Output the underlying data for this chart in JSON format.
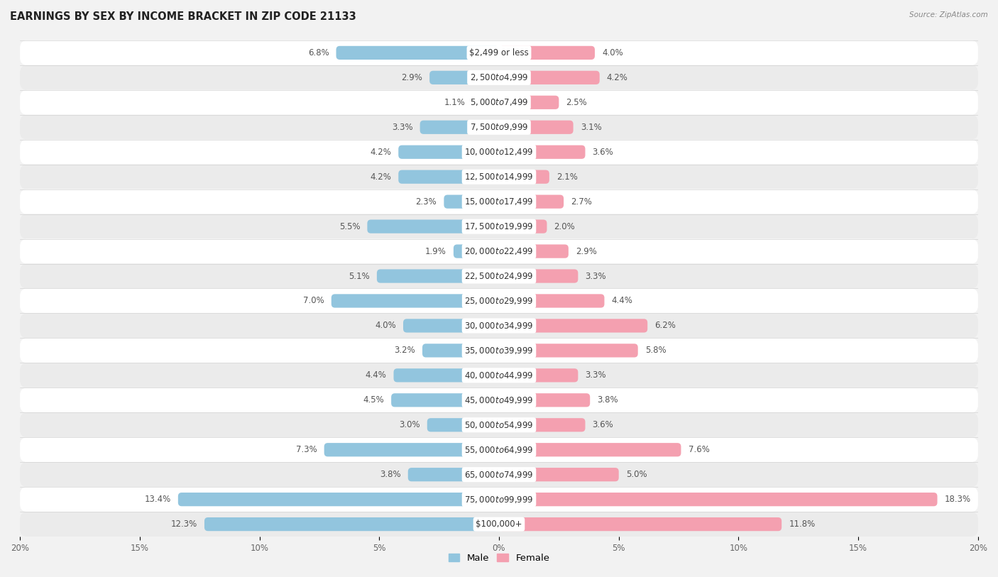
{
  "title": "EARNINGS BY SEX BY INCOME BRACKET IN ZIP CODE 21133",
  "source": "Source: ZipAtlas.com",
  "categories": [
    "$2,499 or less",
    "$2,500 to $4,999",
    "$5,000 to $7,499",
    "$7,500 to $9,999",
    "$10,000 to $12,499",
    "$12,500 to $14,999",
    "$15,000 to $17,499",
    "$17,500 to $19,999",
    "$20,000 to $22,499",
    "$22,500 to $24,999",
    "$25,000 to $29,999",
    "$30,000 to $34,999",
    "$35,000 to $39,999",
    "$40,000 to $44,999",
    "$45,000 to $49,999",
    "$50,000 to $54,999",
    "$55,000 to $64,999",
    "$65,000 to $74,999",
    "$75,000 to $99,999",
    "$100,000+"
  ],
  "male_values": [
    6.8,
    2.9,
    1.1,
    3.3,
    4.2,
    4.2,
    2.3,
    5.5,
    1.9,
    5.1,
    7.0,
    4.0,
    3.2,
    4.4,
    4.5,
    3.0,
    7.3,
    3.8,
    13.4,
    12.3
  ],
  "female_values": [
    4.0,
    4.2,
    2.5,
    3.1,
    3.6,
    2.1,
    2.7,
    2.0,
    2.9,
    3.3,
    4.4,
    6.2,
    5.8,
    3.3,
    3.8,
    3.6,
    7.6,
    5.0,
    18.3,
    11.8
  ],
  "male_color": "#92c5de",
  "female_color": "#f4a0b0",
  "male_label": "Male",
  "female_label": "Female",
  "bg_color": "#f2f2f2",
  "row_color_light": "#ffffff",
  "row_color_dark": "#ebebeb",
  "xlim": 20.0,
  "title_fontsize": 10.5,
  "label_fontsize": 8.5,
  "value_fontsize": 8.5,
  "tick_fontsize": 8.5
}
